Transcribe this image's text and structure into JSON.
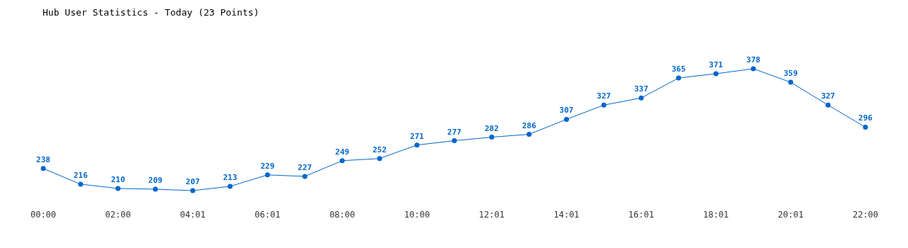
{
  "chart_data": {
    "type": "line",
    "title": "Hub User Statistics - Today (23 Points)",
    "categories": [
      "00:00",
      null,
      "02:00",
      null,
      "04:01",
      null,
      "06:01",
      null,
      "08:00",
      null,
      "10:00",
      null,
      "12:01",
      null,
      "14:01",
      null,
      "16:01",
      null,
      "18:01",
      null,
      "20:01",
      null,
      "22:00"
    ],
    "series": [
      {
        "color": "#0066cc",
        "values": [
          238,
          216,
          210,
          209,
          207,
          213,
          229,
          227,
          249,
          252,
          271,
          277,
          282,
          286,
          307,
          327,
          337,
          365,
          371,
          378,
          359,
          327,
          296
        ]
      }
    ],
    "data_labels": true,
    "marker": "circle",
    "line_style": "solid"
  }
}
